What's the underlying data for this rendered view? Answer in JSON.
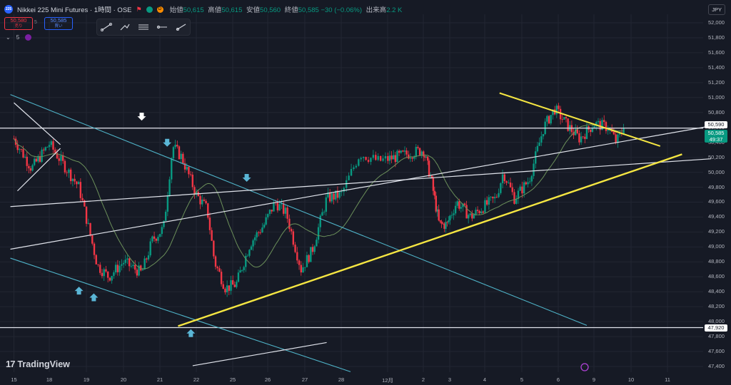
{
  "header": {
    "logo_text": "225",
    "title": "Nikkei 225 Mini Futures · 1時間 · OSE",
    "source_badge": "D",
    "ohlc": [
      {
        "k": "始値",
        "v": "50,615"
      },
      {
        "k": "高値",
        "v": "50,615"
      },
      {
        "k": "安値",
        "v": "50,560"
      },
      {
        "k": "終値",
        "v": "50,585"
      }
    ],
    "change": "−30 (−0.06%)",
    "volume_label": "出来高",
    "volume_value": "2.2 K"
  },
  "trade": {
    "sell_price": "50,580",
    "sell_label": "売り",
    "spread": "5",
    "buy_price": "50,585",
    "buy_label": "買い"
  },
  "indicator_toggle": "5",
  "currency": "JPY",
  "branding": "TradingView",
  "colors": {
    "background": "#161a25",
    "up": "#089981",
    "down": "#f23645",
    "ma": "#6b8f5a",
    "channel": "#4fb3c8",
    "support_yellow": "#f5e642",
    "white_line": "#e0e3eb",
    "arrow_blue": "#5ab6d6"
  },
  "chart_data": {
    "type": "candlestick",
    "symbol": "Nikkei 225 Mini Futures",
    "interval": "1時間",
    "y_axis": {
      "range": [
        47300,
        52100
      ],
      "ticks": [
        "52,000",
        "51,800",
        "51,600",
        "51,400",
        "51,200",
        "51,000",
        "50,800",
        "50,600",
        "50,400",
        "50,200",
        "50,000",
        "49,800",
        "49,600",
        "49,400",
        "49,200",
        "49,000",
        "48,800",
        "48,600",
        "48,400",
        "48,200",
        "48,000",
        "47,800",
        "47,600",
        "47,400"
      ]
    },
    "x_axis": {
      "ticks": [
        "15",
        "18",
        "19",
        "20",
        "21",
        "22",
        "25",
        "26",
        "27",
        "28",
        "12月",
        "2",
        "3",
        "4",
        "5",
        "6",
        "9",
        "10",
        "11"
      ]
    },
    "price_labels": [
      {
        "value": 50590,
        "text": "50,590",
        "style": "level"
      },
      {
        "value": 50585,
        "text": "50,585",
        "sub": "49:37",
        "style": "last"
      },
      {
        "value": 47920,
        "text": "47,920",
        "style": "level"
      }
    ],
    "anchor_path": [
      {
        "x": 0,
        "y": 50450
      },
      {
        "x": 0.5,
        "y": 50050
      },
      {
        "x": 1,
        "y": 50380
      },
      {
        "x": 1.8,
        "y": 49800
      },
      {
        "x": 2.3,
        "y": 48750
      },
      {
        "x": 2.6,
        "y": 48600
      },
      {
        "x": 3.0,
        "y": 48800
      },
      {
        "x": 3.5,
        "y": 48650
      },
      {
        "x": 3.8,
        "y": 49100
      },
      {
        "x": 4.1,
        "y": 49250
      },
      {
        "x": 4.35,
        "y": 50350
      },
      {
        "x": 4.6,
        "y": 50200
      },
      {
        "x": 5.0,
        "y": 49700
      },
      {
        "x": 5.3,
        "y": 49500
      },
      {
        "x": 5.5,
        "y": 48800
      },
      {
        "x": 5.8,
        "y": 48450
      },
      {
        "x": 6.1,
        "y": 48500
      },
      {
        "x": 6.5,
        "y": 49050
      },
      {
        "x": 6.9,
        "y": 49300
      },
      {
        "x": 7.2,
        "y": 49600
      },
      {
        "x": 7.5,
        "y": 49450
      },
      {
        "x": 7.9,
        "y": 48700
      },
      {
        "x": 8.2,
        "y": 48950
      },
      {
        "x": 8.6,
        "y": 49650
      },
      {
        "x": 9.0,
        "y": 49700
      },
      {
        "x": 9.4,
        "y": 50250
      },
      {
        "x": 9.8,
        "y": 50150
      },
      {
        "x": 10.2,
        "y": 50200
      },
      {
        "x": 10.6,
        "y": 50250
      },
      {
        "x": 11.0,
        "y": 50300
      },
      {
        "x": 11.3,
        "y": 49900
      },
      {
        "x": 11.6,
        "y": 49300
      },
      {
        "x": 11.9,
        "y": 49300
      },
      {
        "x": 12.2,
        "y": 49600
      },
      {
        "x": 12.6,
        "y": 49400
      },
      {
        "x": 13.0,
        "y": 49550
      },
      {
        "x": 13.3,
        "y": 49650
      },
      {
        "x": 13.5,
        "y": 50000
      },
      {
        "x": 13.8,
        "y": 49650
      },
      {
        "x": 14.2,
        "y": 49900
      },
      {
        "x": 14.6,
        "y": 50600
      },
      {
        "x": 14.9,
        "y": 50850
      },
      {
        "x": 15.3,
        "y": 50600
      },
      {
        "x": 15.6,
        "y": 50450
      },
      {
        "x": 16.0,
        "y": 50650
      },
      {
        "x": 16.4,
        "y": 50600
      },
      {
        "x": 16.6,
        "y": 50400
      },
      {
        "x": 16.8,
        "y": 50585
      }
    ],
    "drawings": {
      "horizontal_levels": [
        50590,
        47920
      ],
      "yellow_support": {
        "from": {
          "x": 4.5,
          "y": 47940
        },
        "to": {
          "x": 18.4,
          "y": 50240
        }
      },
      "yellow_resistance": {
        "from": {
          "x": 13.4,
          "y": 51060
        },
        "to": {
          "x": 17.8,
          "y": 50350
        }
      },
      "blue_channel_upper": {
        "from": {
          "x": -0.1,
          "y": 51040
        },
        "to": {
          "x": 15.8,
          "y": 47950
        }
      },
      "blue_channel_lower": {
        "from": {
          "x": -0.1,
          "y": 48850
        },
        "to": {
          "x": 9.2,
          "y": 47330
        }
      },
      "white_lines": [
        {
          "from": {
            "x": -0.1,
            "y": 49540
          },
          "to": {
            "x": 19.2,
            "y": 50180
          }
        },
        {
          "from": {
            "x": -0.1,
            "y": 48970
          },
          "to": {
            "x": 19.2,
            "y": 50620
          }
        },
        {
          "from": {
            "x": 4.9,
            "y": 47410
          },
          "to": {
            "x": 8.6,
            "y": 47720
          }
        },
        {
          "from": {
            "x": 0,
            "y": 50930
          },
          "to": {
            "x": 1.3,
            "y": 50370
          }
        },
        {
          "from": {
            "x": 0.1,
            "y": 49750
          },
          "to": {
            "x": 1.3,
            "y": 50320
          }
        }
      ],
      "arrows": [
        {
          "x": 3.5,
          "y": 50730,
          "dir": "down",
          "color": "white"
        },
        {
          "x": 4.2,
          "y": 50380,
          "dir": "down",
          "color": "blue"
        },
        {
          "x": 6.4,
          "y": 49910,
          "dir": "down",
          "color": "blue"
        },
        {
          "x": 1.8,
          "y": 48430,
          "dir": "up",
          "color": "blue"
        },
        {
          "x": 2.2,
          "y": 48340,
          "dir": "up",
          "color": "blue"
        },
        {
          "x": 4.85,
          "y": 47860,
          "dir": "up",
          "color": "blue"
        }
      ]
    }
  }
}
